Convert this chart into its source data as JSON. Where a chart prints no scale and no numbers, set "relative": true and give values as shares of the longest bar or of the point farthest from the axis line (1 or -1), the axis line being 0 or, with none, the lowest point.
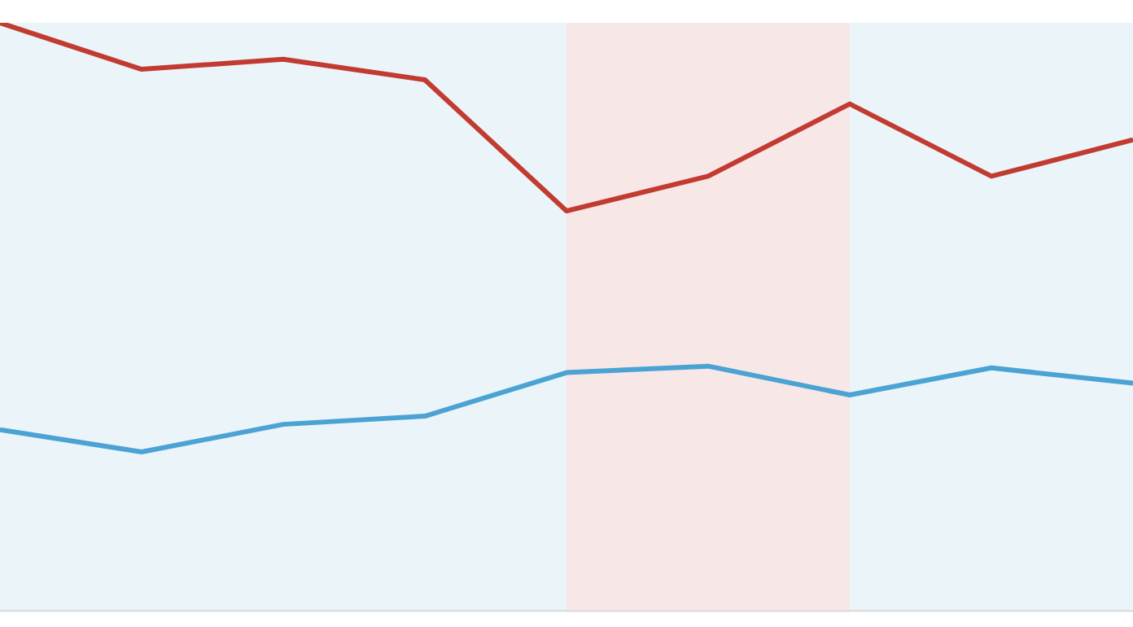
{
  "chart_data": {
    "type": "line",
    "relative": true,
    "categories": [
      null,
      null,
      null,
      null,
      null,
      null,
      null,
      null,
      null
    ],
    "legend": false,
    "marker": "none",
    "line_style": "solid",
    "series": [
      {
        "color": "#c23b30",
        "values": [
          1,
          0.921,
          0.938,
          0.903,
          0.68,
          0.739,
          0.862,
          0.739,
          0.801
        ]
      },
      {
        "color": "#4ba3d3",
        "values": [
          0.308,
          0.27,
          0.317,
          0.331,
          0.405,
          0.416,
          0.367,
          0.413,
          0.387
        ]
      }
    ]
  }
}
